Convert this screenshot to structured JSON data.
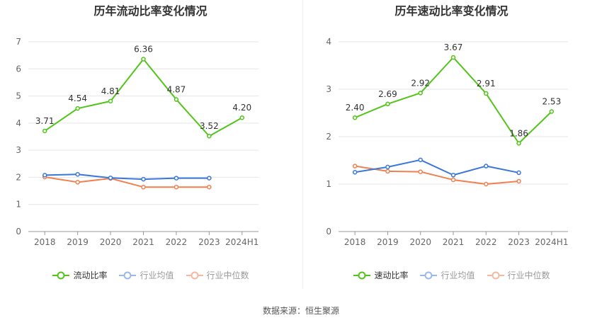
{
  "source": "数据来源：恒生聚源",
  "chart_data": [
    {
      "type": "line",
      "title": "历年流动比率变化情况",
      "categories": [
        "2018",
        "2019",
        "2020",
        "2021",
        "2022",
        "2023",
        "2024H1"
      ],
      "ylim": [
        0,
        7
      ],
      "yticks": [
        0,
        1,
        2,
        3,
        4,
        5,
        6,
        7
      ],
      "grid": true,
      "legend_position": "bottom",
      "series": [
        {
          "name": "流动比率",
          "color": "#52c41a",
          "values": [
            3.71,
            4.54,
            4.81,
            6.36,
            4.87,
            3.52,
            4.2
          ],
          "labels": [
            "3.71",
            "4.54",
            "4.81",
            "6.36",
            "4.87",
            "3.52",
            "4.20"
          ]
        },
        {
          "name": "行业均值",
          "color": "#3a77db",
          "values": [
            2.08,
            2.11,
            1.98,
            1.93,
            1.97,
            1.97,
            null
          ]
        },
        {
          "name": "行业中位数",
          "color": "#f08050",
          "values": [
            2.01,
            1.82,
            1.96,
            1.64,
            1.64,
            1.64,
            null
          ]
        }
      ]
    },
    {
      "type": "line",
      "title": "历年速动比率变化情况",
      "categories": [
        "2018",
        "2019",
        "2020",
        "2021",
        "2022",
        "2023",
        "2024H1"
      ],
      "ylim": [
        0,
        4
      ],
      "yticks": [
        0,
        1,
        2,
        3,
        4
      ],
      "grid": true,
      "legend_position": "bottom",
      "series": [
        {
          "name": "速动比率",
          "color": "#52c41a",
          "values": [
            2.4,
            2.69,
            2.92,
            3.67,
            2.91,
            1.86,
            2.53
          ],
          "labels": [
            "2.40",
            "2.69",
            "2.92",
            "3.67",
            "2.91",
            "1.86",
            "2.53"
          ]
        },
        {
          "name": "行业均值",
          "color": "#3a77db",
          "values": [
            1.25,
            1.36,
            1.51,
            1.19,
            1.38,
            1.24,
            null
          ]
        },
        {
          "name": "行业中位数",
          "color": "#f08050",
          "values": [
            1.38,
            1.27,
            1.26,
            1.09,
            1.0,
            1.06,
            null
          ]
        }
      ]
    }
  ]
}
